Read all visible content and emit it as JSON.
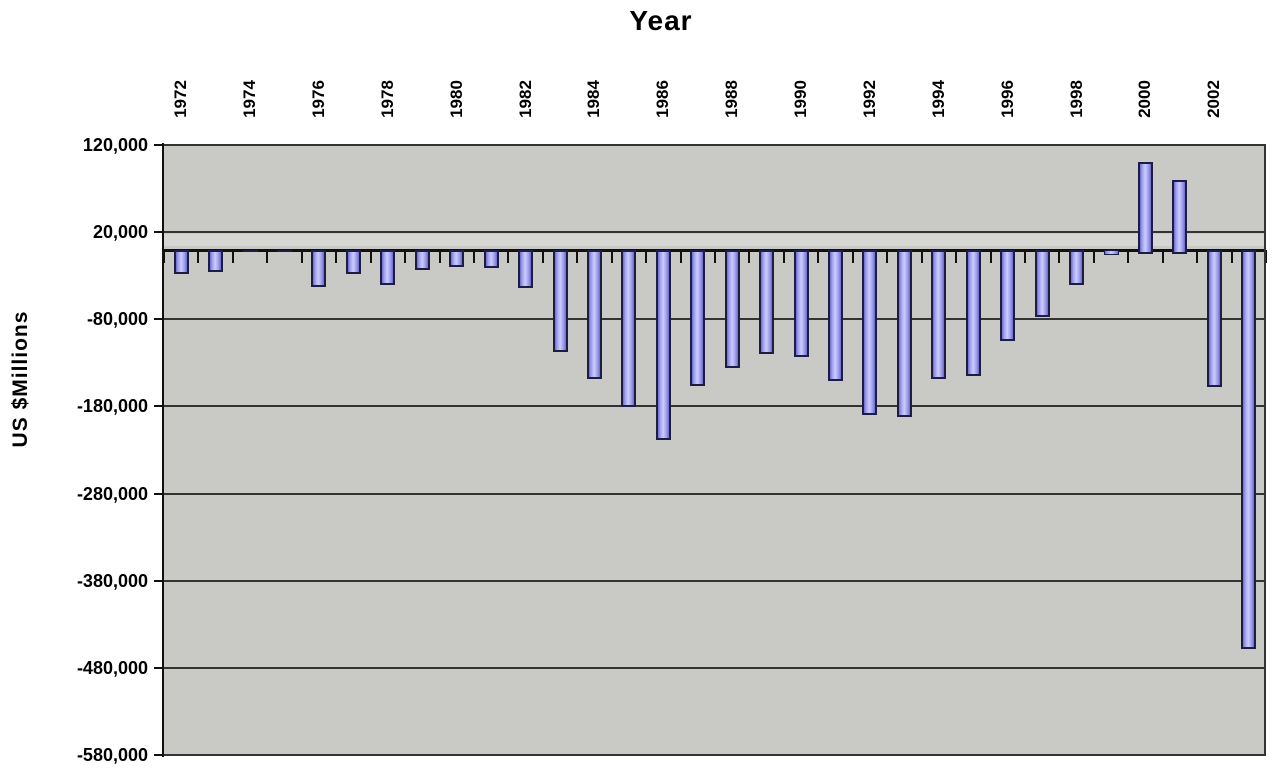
{
  "chart_data": {
    "type": "bar",
    "title": "Year",
    "ylabel": "US $Millions",
    "categories": [
      1972,
      1973,
      1974,
      1975,
      1976,
      1977,
      1978,
      1979,
      1980,
      1981,
      1982,
      1983,
      1984,
      1985,
      1986,
      1987,
      1988,
      1989,
      1990,
      1991,
      1992,
      1993,
      1994,
      1995,
      1996,
      1997,
      1998,
      1999,
      2000,
      2001,
      2002,
      2003
    ],
    "values": [
      -23000,
      -21000,
      -1000,
      -1000,
      -38000,
      -23000,
      -36000,
      -19000,
      -15000,
      -17000,
      -40000,
      -113000,
      -144000,
      -176000,
      -214000,
      -152000,
      -131000,
      -115000,
      -119000,
      -146000,
      -185000,
      -187000,
      -144000,
      -141000,
      -100000,
      -73000,
      -36000,
      -4000,
      100000,
      80000,
      -153000,
      -454000
    ],
    "x_tick_labels": [
      "1972",
      "1974",
      "1976",
      "1978",
      "1980",
      "1982",
      "1984",
      "1986",
      "1988",
      "1990",
      "1992",
      "1994",
      "1996",
      "1998",
      "2000",
      "2002"
    ],
    "y_ticks": [
      120000,
      20000,
      -80000,
      -180000,
      -280000,
      -380000,
      -480000,
      -580000
    ],
    "ylim": [
      -580000,
      120000
    ],
    "grid": "horizontal",
    "legend": "none",
    "colors": {
      "bar_fill": "#9c9cea",
      "bar_fill_light": "#ccccff",
      "bar_fill_dark": "#6b6bc8",
      "bar_border": "#1c1c44",
      "plot_bg": "#c9c9c6",
      "plot_band": "#d6d6d3",
      "gridline": "#333333",
      "axis": "#111111",
      "page_bg": "#ffffff",
      "text": "#000000"
    }
  }
}
